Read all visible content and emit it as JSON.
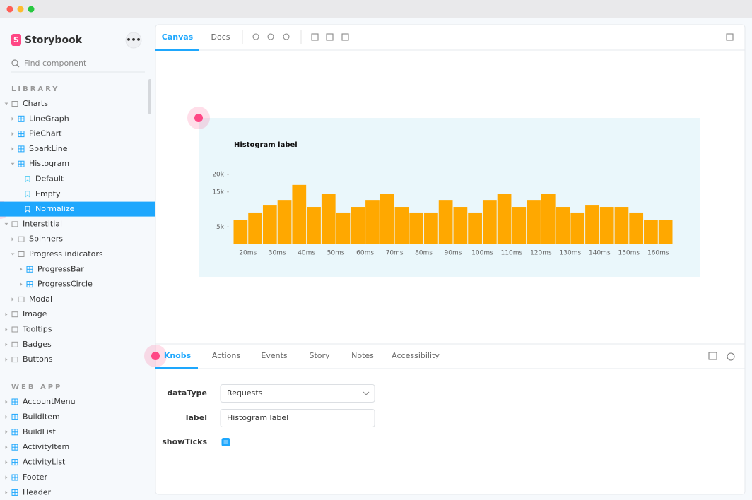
{
  "sidebar": {
    "brand": "Storybook",
    "search_placeholder": "Find component",
    "library_title": "LIBRARY",
    "library": [
      "Charts",
      "LineGraph",
      "PieChart",
      "SparkLine",
      "Histogram",
      "Default",
      "Empty",
      "Normalize",
      "Interstitial",
      "Spinners",
      "Progress indicators",
      "ProgressBar",
      "ProgressCircle",
      "Modal",
      "Image",
      "Tooltips",
      "Badges",
      "Buttons"
    ],
    "web_app_title": "WEB APP",
    "web_app": [
      "AccountMenu",
      "BuildItem",
      "BuildList",
      "ActivityItem",
      "ActivityList",
      "Footer",
      "Header"
    ]
  },
  "toolbar": {
    "tabs": [
      "Canvas",
      "Docs"
    ]
  },
  "chart_data": {
    "type": "histogram",
    "title": "Histogram label",
    "color": "#ffa800",
    "bins": [
      15,
      20,
      25,
      30,
      35,
      40,
      45,
      50,
      55,
      60,
      65,
      70,
      75,
      80,
      85,
      90,
      95,
      100,
      105,
      110,
      115,
      120,
      125,
      130,
      135,
      140,
      145,
      150,
      155,
      160,
      165
    ],
    "values": [
      6900,
      9100,
      11300,
      12700,
      17000,
      10700,
      14500,
      9100,
      10700,
      12700,
      14500,
      10700,
      9100,
      9100,
      12700,
      10700,
      9100,
      12700,
      14500,
      10700,
      12700,
      14500,
      10700,
      9100,
      11300,
      10700,
      10700,
      9100,
      6900,
      6900
    ],
    "xlim": [
      15,
      165
    ],
    "xticks": [
      {
        "value": 20,
        "label": "20ms"
      },
      {
        "value": 30,
        "label": "30ms"
      },
      {
        "value": 40,
        "label": "40ms"
      },
      {
        "value": 50,
        "label": "50ms"
      },
      {
        "value": 60,
        "label": "60ms"
      },
      {
        "value": 70,
        "label": "70ms"
      },
      {
        "value": 80,
        "label": "80ms"
      },
      {
        "value": 90,
        "label": "90ms"
      },
      {
        "value": 100,
        "label": "100ms"
      },
      {
        "value": 110,
        "label": "110ms"
      },
      {
        "value": 120,
        "label": "120ms"
      },
      {
        "value": 130,
        "label": "130ms"
      },
      {
        "value": 140,
        "label": "140ms"
      },
      {
        "value": 150,
        "label": "150ms"
      },
      {
        "value": 160,
        "label": "160ms"
      }
    ],
    "ylim": [
      0,
      20000
    ],
    "yticks": [
      {
        "value": 5000,
        "label": "5k"
      },
      {
        "value": 15000,
        "label": "15k"
      },
      {
        "value": 20000,
        "label": "20k"
      }
    ]
  },
  "addons": {
    "tabs": [
      "Knobs",
      "Actions",
      "Events",
      "Story",
      "Notes",
      "Accessibility"
    ],
    "knobs": [
      {
        "name": "dataType",
        "value": "Requests"
      },
      {
        "name": "label",
        "value": "Histogram label"
      },
      {
        "name": "showTicks",
        "checked": true
      }
    ]
  }
}
